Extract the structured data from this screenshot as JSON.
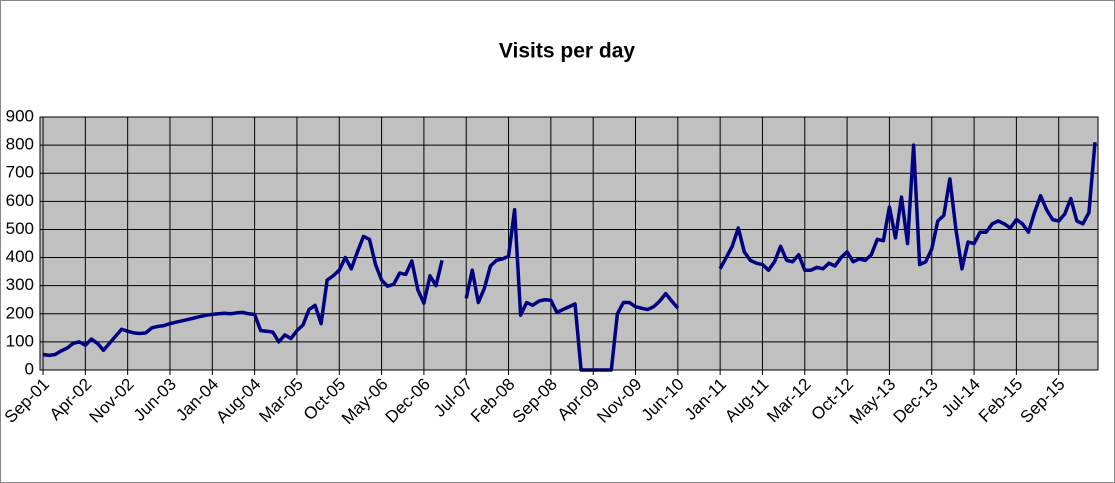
{
  "chart_data": {
    "type": "line",
    "title": "Visits per day",
    "categories": [
      "Sep-01",
      null,
      null,
      null,
      null,
      null,
      null,
      "Apr-02",
      null,
      null,
      null,
      null,
      null,
      null,
      "Nov-02",
      null,
      null,
      null,
      null,
      null,
      null,
      "Jun-03",
      null,
      null,
      null,
      null,
      null,
      null,
      "Jan-04",
      null,
      null,
      null,
      null,
      null,
      null,
      "Aug-04",
      null,
      null,
      null,
      null,
      null,
      null,
      "Mar-05",
      null,
      null,
      null,
      null,
      null,
      null,
      "Oct-05",
      null,
      null,
      null,
      null,
      null,
      null,
      "May-06",
      null,
      null,
      null,
      null,
      null,
      null,
      "Dec-06",
      null,
      null,
      null,
      null,
      null,
      null,
      "Jul-07",
      null,
      null,
      null,
      null,
      null,
      null,
      "Feb-08",
      null,
      null,
      null,
      null,
      null,
      null,
      "Sep-08",
      null,
      null,
      null,
      null,
      null,
      null,
      "Apr-09",
      null,
      null,
      null,
      null,
      null,
      null,
      "Nov-09",
      null,
      null,
      null,
      null,
      null,
      null,
      "Jun-10",
      null,
      null,
      null,
      null,
      null,
      null,
      "Jan-11",
      null,
      null,
      null,
      null,
      null,
      null,
      "Aug-11",
      null,
      null,
      null,
      null,
      null,
      null,
      "Mar-12",
      null,
      null,
      null,
      null,
      null,
      null,
      "Oct-12",
      null,
      null,
      null,
      null,
      null,
      null,
      "May-13",
      null,
      null,
      null,
      null,
      null,
      null,
      "Dec-13",
      null,
      null,
      null,
      null,
      null,
      null,
      "Jul-14",
      null,
      null,
      null,
      null,
      null,
      null,
      "Feb-15",
      null,
      null,
      null,
      null,
      null,
      null,
      "Sep-15",
      null,
      null,
      null,
      null,
      null,
      null
    ],
    "values": [
      55,
      52,
      55,
      68,
      78,
      95,
      100,
      88,
      110,
      95,
      70,
      95,
      120,
      145,
      138,
      132,
      130,
      132,
      150,
      155,
      158,
      165,
      170,
      175,
      180,
      185,
      190,
      195,
      198,
      200,
      202,
      200,
      203,
      205,
      200,
      198,
      140,
      138,
      135,
      100,
      125,
      112,
      140,
      160,
      215,
      230,
      165,
      320,
      335,
      355,
      400,
      360,
      420,
      475,
      465,
      375,
      320,
      298,
      305,
      345,
      340,
      388,
      285,
      238,
      335,
      300,
      390,
      null,
      null,
      null,
      255,
      355,
      240,
      290,
      370,
      390,
      395,
      405,
      570,
      195,
      240,
      230,
      245,
      250,
      248,
      205,
      215,
      225,
      235,
      0,
      0,
      0,
      0,
      0,
      0,
      200,
      240,
      240,
      225,
      220,
      215,
      225,
      245,
      272,
      245,
      220,
      null,
      null,
      null,
      null,
      null,
      null,
      360,
      400,
      440,
      505,
      420,
      390,
      380,
      375,
      355,
      385,
      440,
      390,
      385,
      410,
      355,
      355,
      365,
      360,
      380,
      370,
      400,
      420,
      385,
      395,
      390,
      410,
      465,
      460,
      580,
      470,
      615,
      450,
      800,
      375,
      385,
      430,
      530,
      550,
      680,
      500,
      360,
      455,
      450,
      490,
      490,
      520,
      530,
      520,
      505,
      535,
      520,
      490,
      560,
      620,
      570,
      535,
      530,
      555,
      610,
      530,
      520,
      560,
      810
    ],
    "color": "#000080",
    "ylim": [
      0,
      900
    ],
    "yticks": [
      0,
      100,
      200,
      300,
      400,
      500,
      600,
      700,
      800,
      900
    ],
    "grid": true
  }
}
